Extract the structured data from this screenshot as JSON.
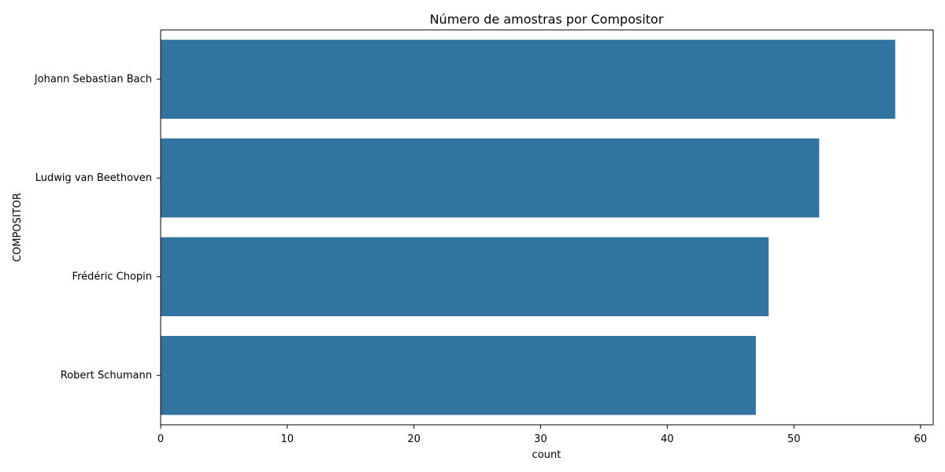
{
  "chart_data": {
    "type": "bar",
    "orientation": "horizontal",
    "title": "Número de amostras por Compositor",
    "xlabel": "count",
    "ylabel": "COMPOSITOR",
    "categories": [
      "Johann Sebastian Bach",
      "Ludwig van Beethoven",
      "Frédéric Chopin",
      "Robert Schumann"
    ],
    "values": [
      58,
      52,
      48,
      47
    ],
    "xlim": [
      0,
      61
    ],
    "xticks": [
      "0",
      "10",
      "20",
      "30",
      "40",
      "50",
      "60"
    ],
    "grid": false,
    "bar_color": "#3274a1"
  }
}
